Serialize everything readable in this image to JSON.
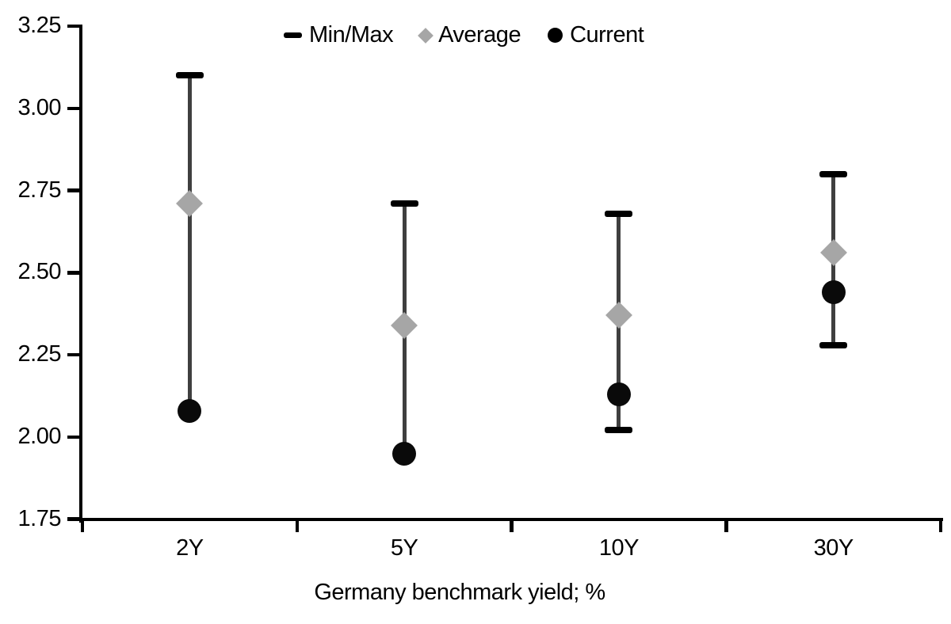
{
  "chart_data": {
    "type": "scatter",
    "title": "",
    "xlabel": "Germany benchmark yield; %",
    "ylabel": "",
    "categories": [
      "2Y",
      "5Y",
      "10Y",
      "30Y"
    ],
    "ylim": [
      1.75,
      3.25
    ],
    "ytick_step": 0.25,
    "ytick_labels": [
      "3.25",
      "3.00",
      "2.75",
      "2.50",
      "2.25",
      "2.00",
      "1.75"
    ],
    "grid": false,
    "legend_position": "top-center",
    "legend": [
      {
        "label": "Min/Max",
        "marker": "dash",
        "color": "#000000"
      },
      {
        "label": "Average",
        "marker": "diamond",
        "color": "#a6a6a6"
      },
      {
        "label": "Current",
        "marker": "circle",
        "color": "#000000"
      }
    ],
    "series": [
      {
        "name": "Max",
        "values": [
          3.1,
          2.71,
          2.68,
          2.8
        ]
      },
      {
        "name": "Min",
        "values": [
          2.08,
          1.95,
          2.02,
          2.28
        ]
      },
      {
        "name": "Average",
        "values": [
          2.71,
          2.34,
          2.37,
          2.56
        ]
      },
      {
        "name": "Current",
        "values": [
          2.08,
          1.95,
          2.13,
          2.44
        ]
      }
    ],
    "colors": {
      "axis": "#000000",
      "whisker": "#3f3f3f",
      "minmax_cap": "#000000",
      "average": "#a6a6a6",
      "current": "#0a0a0a",
      "text": "#000000"
    }
  }
}
